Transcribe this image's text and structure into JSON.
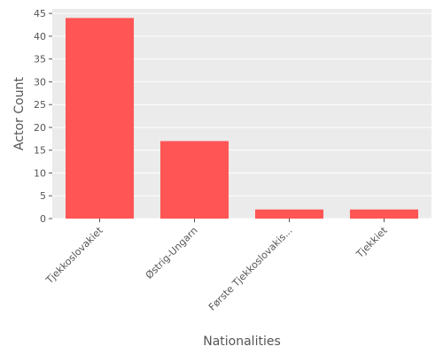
{
  "chart_data": {
    "type": "bar",
    "categories": [
      "Tjekkoslovakiet",
      "Østrig-Ungarn",
      "Første Tjekkoslovakis...",
      "Tjekkiet"
    ],
    "values": [
      44,
      17,
      2,
      2
    ],
    "xlabel": "Nationalities",
    "ylabel": "Actor Count",
    "ylim": [
      0,
      46
    ],
    "yticks": [
      0,
      5,
      10,
      15,
      20,
      25,
      30,
      35,
      40,
      45
    ],
    "grid": true,
    "bar_color": "#ff5555",
    "plot_bg": "#ebebeb",
    "grid_color": "#ffffff"
  }
}
